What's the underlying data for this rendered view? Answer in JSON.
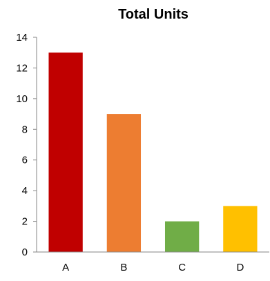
{
  "chart_data": {
    "type": "bar",
    "title": "Total Units",
    "categories": [
      "A",
      "B",
      "C",
      "D"
    ],
    "values": [
      13,
      9,
      2,
      3
    ],
    "bar_colors": [
      "#C00000",
      "#ED7D31",
      "#70AD47",
      "#FFC000"
    ],
    "ylim": [
      0,
      14
    ],
    "yticks": [
      "0",
      "2",
      "4",
      "6",
      "8",
      "10",
      "12",
      "14"
    ],
    "xlabel": "",
    "ylabel": "",
    "grid": false,
    "legend": "none"
  }
}
